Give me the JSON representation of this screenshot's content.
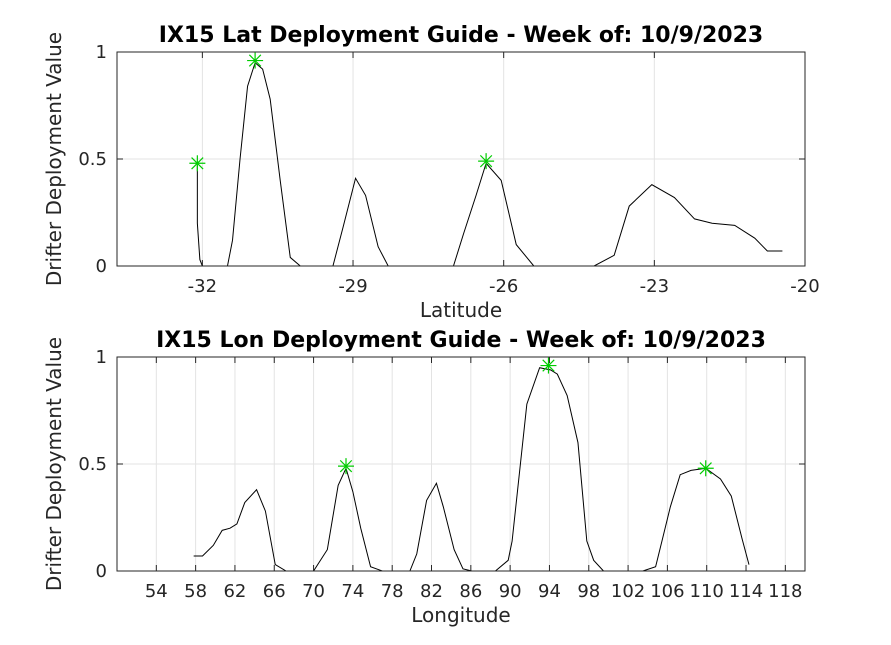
{
  "chart_data": [
    {
      "type": "line",
      "title": "IX15 Lat Deployment Guide - Week of: 10/9/2023",
      "xlabel": "Latitude",
      "ylabel": "Drifter Deployment Value",
      "xlim": [
        -33.7,
        -20
      ],
      "ylim": [
        0,
        1
      ],
      "xticks": [
        -32,
        -29,
        -26,
        -23,
        -20
      ],
      "xtick_labels": [
        "-32",
        "-29",
        "-26",
        "-23",
        "-20"
      ],
      "yticks": [
        0,
        0.5,
        1
      ],
      "ytick_labels": [
        "0",
        "0.5",
        "1"
      ],
      "grid": true,
      "line_color": "#000000",
      "marker_color": "#00cc00",
      "series": [
        {
          "x": [
            -32.1,
            -32.1,
            -32.05,
            -32.0,
            -31.9,
            -31.7,
            -31.5,
            -31.4,
            -31.25,
            -31.1,
            -30.95,
            -30.8,
            -30.65,
            -30.45,
            -30.25,
            -30.05,
            -29.7,
            -29.4,
            -29.2,
            -28.95,
            -28.75,
            -28.5,
            -28.3,
            -28.0,
            -27.5,
            -27.0,
            -26.8,
            -26.55,
            -26.35,
            -26.05,
            -25.75,
            -25.4,
            -25.0,
            -24.2,
            -23.8,
            -23.5,
            -23.05,
            -22.6,
            -22.2,
            -21.85,
            -21.4,
            -21.0,
            -20.75,
            -20.45
          ],
          "y": [
            0.47,
            0.2,
            0.03,
            0.0,
            0.0,
            0.0,
            0.0,
            0.12,
            0.5,
            0.84,
            0.95,
            0.92,
            0.78,
            0.4,
            0.04,
            0.0,
            0.0,
            0.0,
            0.18,
            0.41,
            0.33,
            0.09,
            0.0,
            0.0,
            0.0,
            0.0,
            0.15,
            0.33,
            0.48,
            0.4,
            0.1,
            0.0,
            0.0,
            0.0,
            0.05,
            0.28,
            0.38,
            0.32,
            0.22,
            0.2,
            0.19,
            0.13,
            0.07,
            0.07
          ]
        }
      ],
      "markers": {
        "x": [
          -32.1,
          -30.95,
          -26.35
        ],
        "y": [
          0.48,
          0.96,
          0.49
        ]
      }
    },
    {
      "type": "line",
      "title": "IX15 Lon Deployment Guide - Week of: 10/9/2023",
      "xlabel": "Longitude",
      "ylabel": "Drifter Deployment Value",
      "xlim": [
        50,
        120
      ],
      "ylim": [
        0,
        1
      ],
      "xticks": [
        54,
        58,
        62,
        66,
        70,
        74,
        78,
        82,
        86,
        90,
        94,
        98,
        102,
        106,
        110,
        114,
        118
      ],
      "xtick_labels": [
        "54",
        "58",
        "62",
        "66",
        "70",
        "74",
        "78",
        "82",
        "86",
        "90",
        "94",
        "98",
        "102",
        "106",
        "110",
        "114",
        "118"
      ],
      "yticks": [
        0,
        0.5,
        1
      ],
      "ytick_labels": [
        "0",
        "0.5",
        "1"
      ],
      "grid": true,
      "line_color": "#000000",
      "marker_color": "#00cc00",
      "series": [
        {
          "x": [
            57.8,
            58.7,
            59.8,
            60.7,
            61.5,
            62.2,
            63.0,
            64.2,
            65.1,
            66.1,
            67.2,
            70.0,
            71.4,
            72.5,
            73.3,
            74.0,
            74.8,
            75.8,
            77.0,
            79.8,
            80.5,
            81.5,
            82.5,
            83.2,
            84.3,
            85.2,
            86.1,
            88.5,
            89.8,
            90.2,
            91.7,
            93.0,
            94.1,
            94.8,
            95.8,
            96.9,
            97.8,
            98.5,
            99.5,
            103.5,
            104.8,
            105.5,
            106.3,
            107.3,
            108.4,
            109.9,
            111.4,
            112.5,
            113.6,
            114.3
          ],
          "y": [
            0.07,
            0.07,
            0.12,
            0.19,
            0.2,
            0.22,
            0.32,
            0.38,
            0.28,
            0.03,
            0.0,
            0.0,
            0.1,
            0.4,
            0.48,
            0.37,
            0.2,
            0.02,
            0.0,
            0.0,
            0.08,
            0.33,
            0.41,
            0.3,
            0.1,
            0.01,
            0.0,
            0.0,
            0.05,
            0.14,
            0.78,
            0.95,
            0.94,
            0.92,
            0.82,
            0.6,
            0.14,
            0.05,
            0.0,
            0.0,
            0.02,
            0.15,
            0.3,
            0.45,
            0.47,
            0.48,
            0.43,
            0.35,
            0.15,
            0.03
          ]
        }
      ],
      "markers": {
        "x": [
          73.3,
          93.9,
          109.9
        ],
        "y": [
          0.49,
          0.96,
          0.48
        ]
      }
    }
  ]
}
